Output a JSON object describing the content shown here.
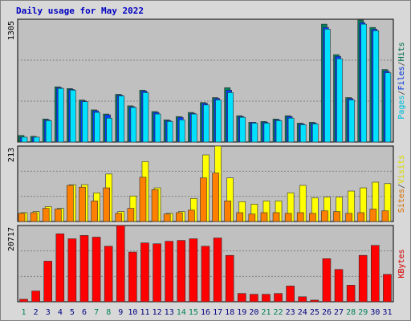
{
  "chart_data": {
    "type": "bar",
    "title": "Daily usage for May 2022",
    "legend_separator": "/",
    "categories": [
      "1",
      "2",
      "3",
      "4",
      "5",
      "6",
      "7",
      "8",
      "9",
      "10",
      "11",
      "12",
      "13",
      "14",
      "15",
      "16",
      "17",
      "18",
      "19",
      "20",
      "21",
      "22",
      "23",
      "24",
      "25",
      "26",
      "27",
      "28",
      "29",
      "30",
      "31"
    ],
    "category_colors": [
      "#00805c",
      "#000080",
      "#000080",
      "#000080",
      "#000080",
      "#000080",
      "#00805c",
      "#00805c",
      "#000080",
      "#000080",
      "#000080",
      "#000080",
      "#000080",
      "#00805c",
      "#00805c",
      "#000080",
      "#000080",
      "#000080",
      "#000080",
      "#000080",
      "#00805c",
      "#00805c",
      "#000080",
      "#000080",
      "#000080",
      "#000080",
      "#000080",
      "#00805c",
      "#00805c",
      "#000080",
      "#000080"
    ],
    "panels": [
      {
        "ylim": [
          0,
          1305
        ],
        "yticks": [
          1305
        ],
        "grid_divisions": 3,
        "series": [
          {
            "name": "Hits",
            "color": "#00805c",
            "values": [
              70,
              61,
              245,
              587,
              569,
              447,
              342,
              298,
              508,
              385,
              552,
              324,
              236,
              271,
              315,
              420,
              473,
              578,
              280,
              210,
              219,
              245,
              280,
              201,
              210,
              1253,
              929,
              473,
              1296,
              1218,
              771
            ]
          },
          {
            "name": "Files",
            "color": "#0040ff",
            "values": [
              52,
              52,
              236,
              578,
              560,
              438,
              333,
              289,
              499,
              376,
              543,
              315,
              228,
              263,
              306,
              412,
              464,
              552,
              271,
              210,
              210,
              236,
              271,
              193,
              201,
              1218,
              911,
              464,
              1270,
              1200,
              753
            ]
          },
          {
            "name": "Pages",
            "color": "#00e0ff",
            "values": [
              52,
              52,
              228,
              570,
              552,
              429,
              315,
              254,
              490,
              368,
              525,
              298,
              219,
              236,
              298,
              394,
              447,
              525,
              263,
              201,
              201,
              228,
              254,
              184,
              193,
              1200,
              885,
              447,
              1253,
              1183,
              736
            ]
          }
        ]
      },
      {
        "ylim": [
          0,
          213
        ],
        "yticks": [
          213
        ],
        "grid_divisions": 3,
        "series": [
          {
            "name": "Visits",
            "color": "#ffff00",
            "values": [
              25,
              28,
              42,
              37,
              104,
              104,
              81,
              134,
              28,
              72,
              169,
              95,
              23,
              28,
              65,
              188,
              213,
              123,
              56,
              49,
              58,
              58,
              81,
              102,
              67,
              69,
              69,
              86,
              95,
              111,
              107
            ]
          },
          {
            "name": "Sites",
            "color": "#ff8000",
            "values": [
              23,
              25,
              37,
              35,
              102,
              97,
              58,
              95,
              23,
              37,
              125,
              90,
              21,
              25,
              32,
              123,
              137,
              58,
              25,
              21,
              25,
              25,
              23,
              25,
              23,
              30,
              28,
              23,
              25,
              35,
              30
            ]
          }
        ]
      },
      {
        "ylim": [
          0,
          20717
        ],
        "yticks": [
          20717
        ],
        "grid_divisions": 3,
        "series": [
          {
            "name": "KBytes",
            "color": "#ff0000",
            "values": [
              675,
              2927,
              11032,
              18462,
              17111,
              18012,
              17561,
              15085,
              20717,
              13509,
              15986,
              15761,
              16436,
              16661,
              17111,
              15085,
              17336,
              12608,
              2252,
              2026,
              2026,
              2252,
              4279,
              1351,
              450,
              11707,
              8781,
              4504,
              12608,
              15311,
              7430
            ]
          }
        ]
      }
    ]
  }
}
